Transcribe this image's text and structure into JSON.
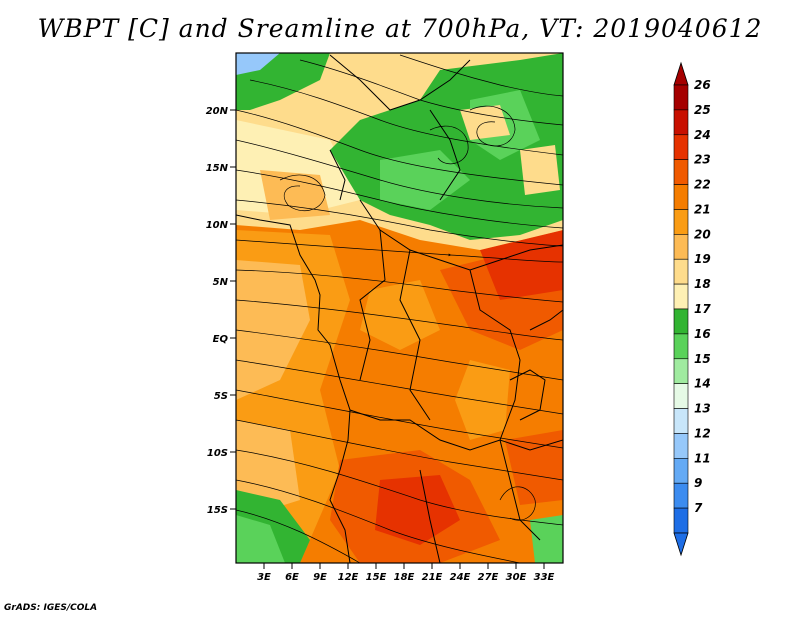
{
  "title": "WBPT [C] and Sreamline at 700hPa, VT: 2019040612",
  "footer": "GrADS: IGES/COLA",
  "map": {
    "lat_labels": [
      "20N",
      "15N",
      "10N",
      "5N",
      "EQ",
      "5S",
      "10S",
      "15S"
    ],
    "lon_labels": [
      "3E",
      "6E",
      "9E",
      "12E",
      "15E",
      "18E",
      "21E",
      "24E",
      "27E",
      "30E",
      "33E"
    ]
  },
  "colorbar": {
    "labels": [
      "26",
      "25",
      "24",
      "23",
      "22",
      "21",
      "20",
      "19",
      "18",
      "17",
      "16",
      "15",
      "14",
      "13",
      "12",
      "11",
      "9",
      "7"
    ],
    "colors": [
      "#a50000",
      "#c81000",
      "#e63200",
      "#f05a00",
      "#f57d00",
      "#fa9c14",
      "#fdbb55",
      "#fedc8c",
      "#fef0b4",
      "#32b432",
      "#5ad25a",
      "#a0eba0",
      "#e6fae6",
      "#c8e6fa",
      "#96c8fa",
      "#64aaf5",
      "#3c8cf0",
      "#1e6ee6"
    ]
  }
}
